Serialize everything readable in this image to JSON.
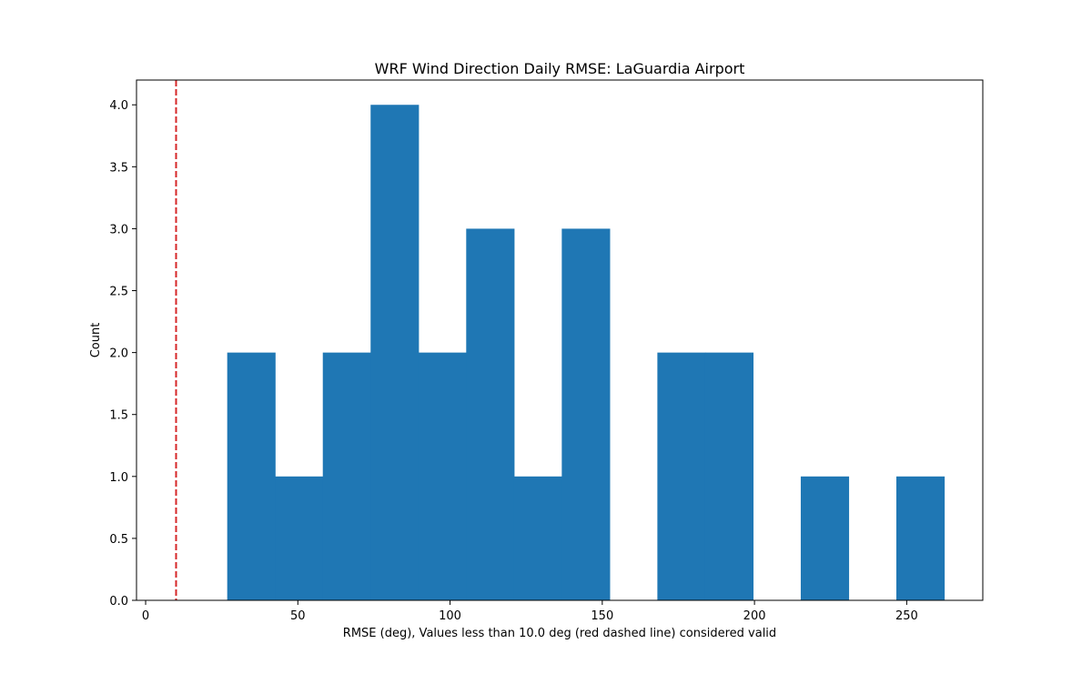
{
  "chart_data": {
    "type": "bar",
    "title": "WRF Wind Direction Daily RMSE: LaGuardia Airport",
    "xlabel": "RMSE (deg), Values less than 10.0 deg (red dashed line) considered valid",
    "ylabel": "Count",
    "xlim": [
      -3,
      275
    ],
    "ylim": [
      0,
      4.2
    ],
    "x_ticks": [
      0,
      50,
      100,
      150,
      200,
      250
    ],
    "x_tick_labels": [
      "0",
      "50",
      "100",
      "150",
      "200",
      "250"
    ],
    "y_ticks": [
      0.0,
      0.5,
      1.0,
      1.5,
      2.0,
      2.5,
      3.0,
      3.5,
      4.0
    ],
    "y_tick_labels": [
      "0.0",
      "0.5",
      "1.0",
      "1.5",
      "2.0",
      "2.5",
      "3.0",
      "3.5",
      "4.0"
    ],
    "bins": [
      {
        "start": 26.8,
        "end": 42.5,
        "count": 2
      },
      {
        "start": 42.5,
        "end": 58.2,
        "count": 1
      },
      {
        "start": 58.2,
        "end": 73.9,
        "count": 2
      },
      {
        "start": 73.9,
        "end": 89.6,
        "count": 4
      },
      {
        "start": 89.6,
        "end": 105.3,
        "count": 2
      },
      {
        "start": 105.3,
        "end": 121.0,
        "count": 3
      },
      {
        "start": 121.0,
        "end": 136.7,
        "count": 1
      },
      {
        "start": 136.7,
        "end": 152.4,
        "count": 3
      },
      {
        "start": 152.4,
        "end": 168.1,
        "count": 0
      },
      {
        "start": 168.1,
        "end": 183.8,
        "count": 2
      },
      {
        "start": 183.8,
        "end": 199.5,
        "count": 2
      },
      {
        "start": 199.5,
        "end": 215.2,
        "count": 0
      },
      {
        "start": 215.2,
        "end": 230.9,
        "count": 1
      },
      {
        "start": 230.9,
        "end": 246.6,
        "count": 0
      },
      {
        "start": 246.6,
        "end": 262.3,
        "count": 1
      }
    ],
    "threshold": {
      "x": 10.0,
      "color": "#d62728",
      "style": "dashed"
    },
    "bar_color": "#1f77b4",
    "grid": false,
    "legend": "none"
  }
}
